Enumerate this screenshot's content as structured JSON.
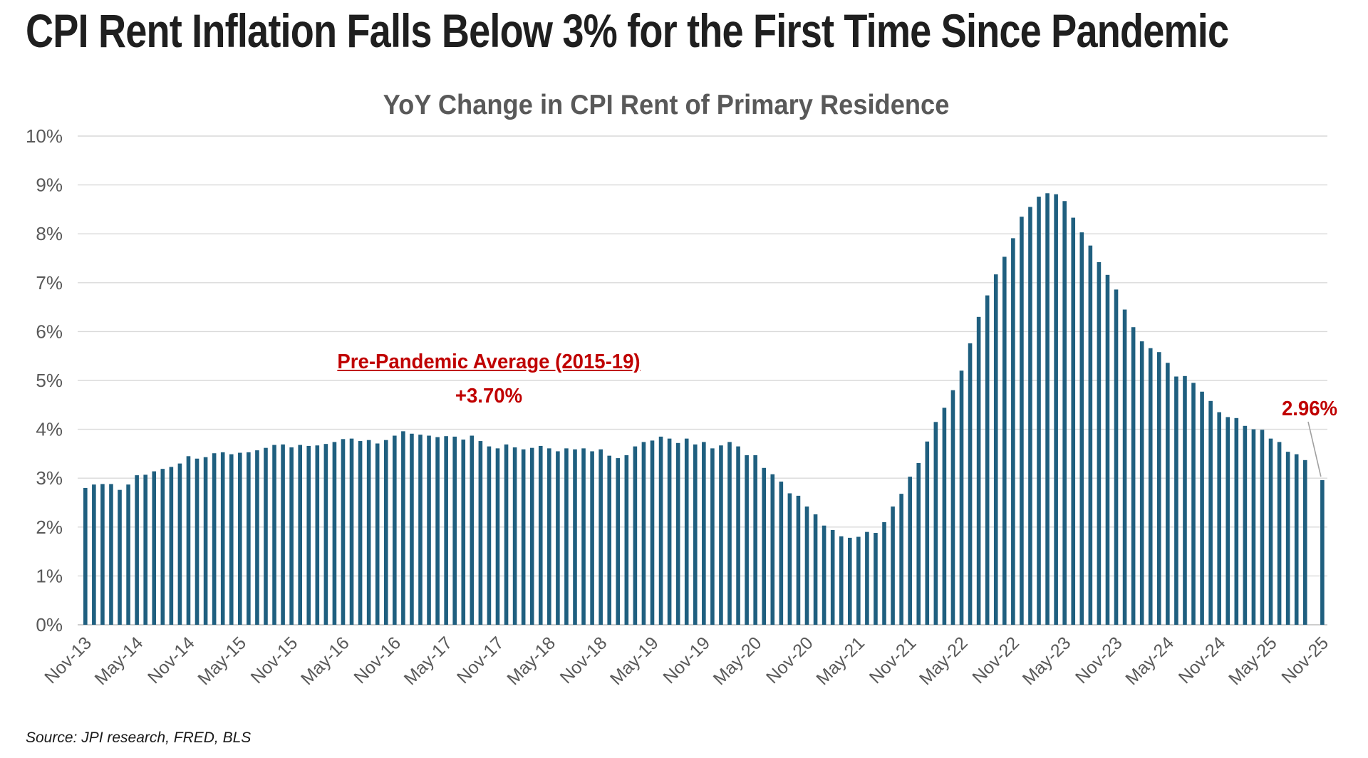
{
  "chart_data": {
    "type": "bar",
    "title": "CPI Rent Inflation Falls Below 3% for the First Time Since Pandemic",
    "subtitle": "YoY Change in CPI Rent of Primary Residence",
    "ylabel": "",
    "xlabel": "",
    "ylim": [
      0,
      10
    ],
    "grid": "horizontal",
    "legend": "none",
    "bar_color": "#1F5F7F",
    "grid_color": "#D9D9D9",
    "axis_text_color": "#595959",
    "annotation_color": "#C00000",
    "y_tick_labels": [
      "0%",
      "1%",
      "2%",
      "3%",
      "4%",
      "5%",
      "6%",
      "7%",
      "8%",
      "9%",
      "10%"
    ],
    "x_tick_labels": [
      "Nov-13",
      "May-14",
      "Nov-14",
      "May-15",
      "Nov-15",
      "May-16",
      "Nov-16",
      "May-17",
      "Nov-17",
      "May-18",
      "Nov-18",
      "May-19",
      "Nov-19",
      "May-20",
      "Nov-20",
      "May-21",
      "Nov-21",
      "May-22",
      "Nov-22",
      "May-23",
      "Nov-23",
      "May-24",
      "Nov-24",
      "May-25",
      "Nov-25"
    ],
    "x_tick_every": 6,
    "series_note": "Monthly bars from Nov-13 to Nov-25; one empty slot (no bar) in the second-to-last position before Nov-25",
    "values": [
      2.8,
      2.87,
      2.88,
      2.88,
      2.76,
      2.87,
      3.06,
      3.07,
      3.14,
      3.19,
      3.23,
      3.3,
      3.45,
      3.4,
      3.43,
      3.51,
      3.53,
      3.49,
      3.52,
      3.53,
      3.57,
      3.62,
      3.68,
      3.69,
      3.63,
      3.68,
      3.66,
      3.67,
      3.7,
      3.74,
      3.8,
      3.81,
      3.76,
      3.78,
      3.71,
      3.78,
      3.87,
      3.96,
      3.91,
      3.89,
      3.87,
      3.84,
      3.86,
      3.85,
      3.79,
      3.87,
      3.76,
      3.65,
      3.61,
      3.69,
      3.63,
      3.59,
      3.62,
      3.66,
      3.61,
      3.55,
      3.61,
      3.59,
      3.61,
      3.55,
      3.59,
      3.46,
      3.41,
      3.47,
      3.65,
      3.74,
      3.77,
      3.85,
      3.81,
      3.72,
      3.81,
      3.69,
      3.74,
      3.61,
      3.67,
      3.74,
      3.65,
      3.47,
      3.47,
      3.21,
      3.08,
      2.93,
      2.69,
      2.64,
      2.42,
      2.26,
      2.03,
      1.94,
      1.81,
      1.78,
      1.8,
      1.9,
      1.88,
      2.1,
      2.42,
      2.68,
      3.03,
      3.31,
      3.75,
      4.15,
      4.44,
      4.8,
      5.2,
      5.76,
      6.3,
      6.74,
      7.17,
      7.53,
      7.91,
      8.35,
      8.55,
      8.76,
      8.83,
      8.81,
      8.67,
      8.33,
      8.03,
      7.76,
      7.42,
      7.16,
      6.86,
      6.45,
      6.09,
      5.8,
      5.66,
      5.58,
      5.36,
      5.08,
      5.09,
      4.95,
      4.77,
      4.58,
      4.35,
      4.25,
      4.23,
      4.07,
      4.0,
      3.99,
      3.81,
      3.74,
      3.54,
      3.49,
      3.37,
      null,
      2.96
    ],
    "annotations": {
      "prepandemic_label": "Pre-Pandemic Average (2015-19)",
      "prepandemic_value": "+3.70%",
      "latest_label": "2.96%"
    }
  },
  "footer": {
    "source": "Source: JPI research, FRED, BLS"
  }
}
